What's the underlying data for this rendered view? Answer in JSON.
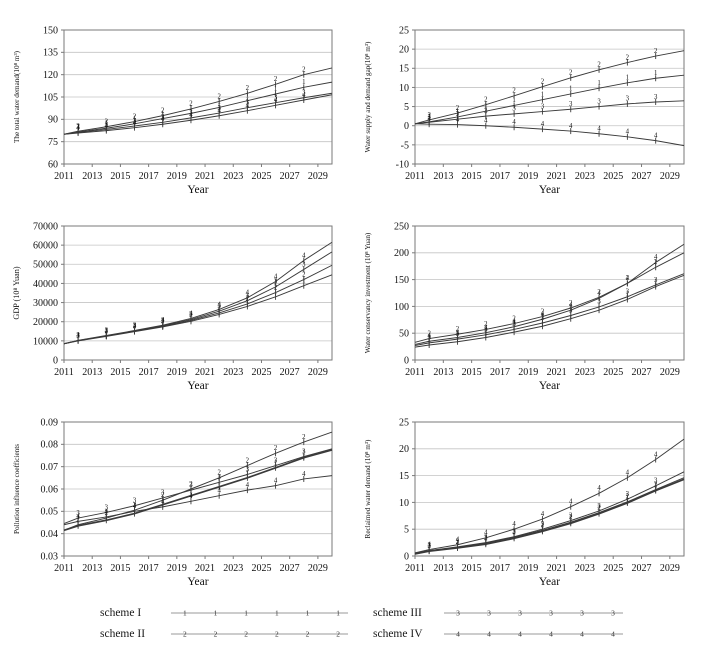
{
  "page": {
    "background": "#ffffff"
  },
  "colors": {
    "line": "#3a3a3a",
    "grid": "#c4c4c4",
    "border": "#7a7a7a",
    "text": "#111111",
    "legend_line": "#9a9a9a"
  },
  "legend": {
    "items": [
      {
        "label": "scheme I",
        "marker": "1"
      },
      {
        "label": "scheme II",
        "marker": "2"
      },
      {
        "label": "scheme III",
        "marker": "3"
      },
      {
        "label": "scheme IV",
        "marker": "4"
      }
    ]
  },
  "chart_data": [
    {
      "type": "line",
      "name": "total-water-demand",
      "ylabel": "The total water demand(10⁸ m³)",
      "xlabel": "Year",
      "ylim": [
        60,
        150
      ],
      "yticks": [
        60,
        75,
        90,
        105,
        120,
        135,
        150
      ],
      "ytick_decimals": 0,
      "xlim": [
        2011,
        2030
      ],
      "xticks": [
        2011,
        2013,
        2015,
        2017,
        2019,
        2021,
        2023,
        2025,
        2027,
        2029
      ],
      "x": [
        2011,
        2012,
        2014,
        2016,
        2018,
        2020,
        2022,
        2024,
        2026,
        2028,
        2030
      ],
      "series": [
        {
          "name": "scheme I",
          "marker": "1",
          "bold": false,
          "values": [
            80,
            81.5,
            84,
            87,
            90.5,
            94,
            98,
            102.5,
            107,
            111.5,
            115
          ]
        },
        {
          "name": "scheme II",
          "marker": "2",
          "bold": false,
          "values": [
            80,
            82,
            85,
            88.5,
            92.5,
            97,
            102,
            107.5,
            113.5,
            120,
            124.5
          ]
        },
        {
          "name": "scheme III",
          "marker": "3",
          "bold": false,
          "values": [
            80,
            81.2,
            83.2,
            85.5,
            88,
            91,
            94.2,
            97.8,
            101.2,
            104.5,
            107.5
          ]
        },
        {
          "name": "scheme IV",
          "marker": "4",
          "bold": false,
          "values": [
            80,
            80.8,
            82.4,
            84.4,
            86.7,
            89.4,
            92.4,
            95.8,
            99.4,
            103,
            106.5
          ]
        }
      ]
    },
    {
      "type": "line",
      "name": "supply-demand-gap",
      "ylabel": "Water supply and demand gap(10⁸ m³)",
      "xlabel": "Year",
      "ylim": [
        -10,
        25
      ],
      "yticks": [
        -10,
        -5,
        0,
        5,
        10,
        15,
        20,
        25
      ],
      "ytick_decimals": 0,
      "xlim": [
        2011,
        2030
      ],
      "xticks": [
        2011,
        2013,
        2015,
        2017,
        2019,
        2021,
        2023,
        2025,
        2027,
        2029
      ],
      "x": [
        2011,
        2012,
        2014,
        2016,
        2018,
        2020,
        2022,
        2024,
        2026,
        2028,
        2030
      ],
      "series": [
        {
          "name": "scheme I",
          "marker": "1",
          "bold": false,
          "values": [
            0.5,
            1,
            2.3,
            3.8,
            5.3,
            6.8,
            8.3,
            9.8,
            11.2,
            12.4,
            13.2
          ]
        },
        {
          "name": "scheme II",
          "marker": "2",
          "bold": false,
          "values": [
            0.5,
            1.5,
            3.3,
            5.5,
            7.8,
            10.2,
            12.5,
            14.6,
            16.5,
            18.2,
            19.6
          ]
        },
        {
          "name": "scheme III",
          "marker": "3",
          "bold": false,
          "values": [
            0.5,
            0.9,
            1.7,
            2.5,
            3.1,
            3.7,
            4.3,
            5,
            5.7,
            6.2,
            6.5
          ]
        },
        {
          "name": "scheme IV",
          "marker": "4",
          "bold": false,
          "values": [
            0.5,
            0.4,
            0.3,
            0,
            -0.4,
            -0.9,
            -1.4,
            -2.1,
            -2.9,
            -3.9,
            -5.2
          ]
        }
      ]
    },
    {
      "type": "line",
      "name": "gdp",
      "ylabel": "GDP (10⁸ Yuan)",
      "xlabel": "Year",
      "ylim": [
        0,
        70000
      ],
      "yticks": [
        0,
        10000,
        20000,
        30000,
        40000,
        50000,
        60000,
        70000
      ],
      "ytick_decimals": 0,
      "xlim": [
        2011,
        2030
      ],
      "xticks": [
        2011,
        2013,
        2015,
        2017,
        2019,
        2021,
        2023,
        2025,
        2027,
        2029
      ],
      "x": [
        2011,
        2012,
        2014,
        2016,
        2018,
        2020,
        2022,
        2024,
        2026,
        2028,
        2030
      ],
      "series": [
        {
          "name": "scheme I",
          "marker": "1",
          "bold": false,
          "values": [
            8500,
            10000,
            12300,
            14800,
            17300,
            20200,
            23800,
            28000,
            33000,
            38800,
            44500
          ]
        },
        {
          "name": "scheme II",
          "marker": "2",
          "bold": false,
          "values": [
            8500,
            10100,
            12500,
            15000,
            17600,
            20700,
            24600,
            29300,
            35200,
            42000,
            49500
          ]
        },
        {
          "name": "scheme III",
          "marker": "3",
          "bold": false,
          "values": [
            8500,
            10200,
            12600,
            15200,
            17900,
            21200,
            25500,
            31000,
            38200,
            47300,
            56500
          ]
        },
        {
          "name": "scheme IV",
          "marker": "4",
          "bold": false,
          "values": [
            8500,
            10300,
            12800,
            15400,
            18200,
            21700,
            26400,
            32500,
            41000,
            52000,
            61500
          ]
        }
      ]
    },
    {
      "type": "line",
      "name": "water-conservancy-investment",
      "ylabel": "Water conservancy investment (10⁸ Yuan)",
      "xlabel": "Year",
      "ylim": [
        0,
        250
      ],
      "yticks": [
        0,
        50,
        100,
        150,
        200,
        250
      ],
      "ytick_decimals": 0,
      "xlim": [
        2011,
        2030
      ],
      "xticks": [
        2011,
        2013,
        2015,
        2017,
        2019,
        2021,
        2023,
        2025,
        2027,
        2029
      ],
      "x": [
        2011,
        2012,
        2014,
        2016,
        2018,
        2020,
        2022,
        2024,
        2026,
        2028,
        2030
      ],
      "series": [
        {
          "name": "scheme I",
          "marker": "1",
          "bold": false,
          "values": [
            24,
            28,
            34,
            42,
            52,
            63,
            77,
            93,
            113,
            137,
            158
          ]
        },
        {
          "name": "scheme II",
          "marker": "2",
          "bold": false,
          "values": [
            33,
            40,
            48,
            57,
            68,
            81,
            97,
            117,
            143,
            173,
            200
          ]
        },
        {
          "name": "scheme III",
          "marker": "3",
          "bold": false,
          "values": [
            27,
            32,
            39,
            47,
            57,
            69,
            83,
            99,
            118,
            140,
            161
          ]
        },
        {
          "name": "scheme IV",
          "marker": "4",
          "bold": false,
          "values": [
            29,
            35,
            42,
            51,
            62,
            76,
            93,
            115,
            143,
            182,
            216
          ]
        }
      ]
    },
    {
      "type": "line",
      "name": "pollution-influence-coefficients",
      "ylabel": "Pollution influence coefficients",
      "xlabel": "Year",
      "ylim": [
        0.03,
        0.09
      ],
      "yticks": [
        0.03,
        0.04,
        0.05,
        0.06,
        0.07,
        0.08,
        0.09
      ],
      "ytick_decimals": 2,
      "xlim": [
        2011,
        2030
      ],
      "xticks": [
        2011,
        2013,
        2015,
        2017,
        2019,
        2021,
        2023,
        2025,
        2027,
        2029
      ],
      "x": [
        2011,
        2012,
        2014,
        2016,
        2018,
        2020,
        2022,
        2024,
        2026,
        2028,
        2030
      ],
      "series": [
        {
          "name": "scheme I",
          "marker": "1",
          "bold": true,
          "values": [
            0.0415,
            0.0435,
            0.046,
            0.049,
            0.053,
            0.057,
            0.061,
            0.065,
            0.0695,
            0.074,
            0.0775
          ]
        },
        {
          "name": "scheme II",
          "marker": "2",
          "bold": false,
          "values": [
            0.0415,
            0.044,
            0.047,
            0.0505,
            0.055,
            0.06,
            0.065,
            0.0705,
            0.076,
            0.081,
            0.0855
          ]
        },
        {
          "name": "scheme III",
          "marker": "3",
          "bold": false,
          "values": [
            0.0445,
            0.047,
            0.0495,
            0.0525,
            0.056,
            0.0595,
            0.063,
            0.0665,
            0.0705,
            0.0745,
            0.078
          ]
        },
        {
          "name": "scheme IV",
          "marker": "4",
          "bold": false,
          "values": [
            0.044,
            0.0455,
            0.0475,
            0.05,
            0.052,
            0.0545,
            0.057,
            0.0595,
            0.0615,
            0.0645,
            0.066
          ]
        }
      ]
    },
    {
      "type": "line",
      "name": "reclaimed-water-demand",
      "ylabel": "Reclaimed water demand (10⁸ m³)",
      "xlabel": "Year",
      "ylim": [
        0,
        25
      ],
      "yticks": [
        0,
        5,
        10,
        15,
        20,
        25
      ],
      "ytick_decimals": 0,
      "xlim": [
        2011,
        2030
      ],
      "xticks": [
        2011,
        2013,
        2015,
        2017,
        2019,
        2021,
        2023,
        2025,
        2027,
        2029
      ],
      "x": [
        2011,
        2012,
        2014,
        2016,
        2018,
        2020,
        2022,
        2024,
        2026,
        2028,
        2030
      ],
      "series": [
        {
          "name": "scheme I",
          "marker": "1",
          "bold": true,
          "values": [
            0.4,
            0.9,
            1.5,
            2.2,
            3.3,
            4.6,
            6.1,
            7.9,
            9.9,
            12.2,
            14.3
          ]
        },
        {
          "name": "scheme II",
          "marker": "2",
          "bold": false,
          "values": [
            0.5,
            1.0,
            1.6,
            2.4,
            3.5,
            4.8,
            6.3,
            8.1,
            10.1,
            12.4,
            14.6
          ]
        },
        {
          "name": "scheme III",
          "marker": "3",
          "bold": false,
          "values": [
            0.5,
            1.0,
            1.7,
            2.5,
            3.6,
            5.0,
            6.6,
            8.4,
            10.6,
            13.1,
            15.7
          ]
        },
        {
          "name": "scheme IV",
          "marker": "4",
          "bold": false,
          "values": [
            0.6,
            1.2,
            2.1,
            3.4,
            5.0,
            6.9,
            9.2,
            11.7,
            14.6,
            18.0,
            21.8
          ]
        }
      ]
    }
  ]
}
